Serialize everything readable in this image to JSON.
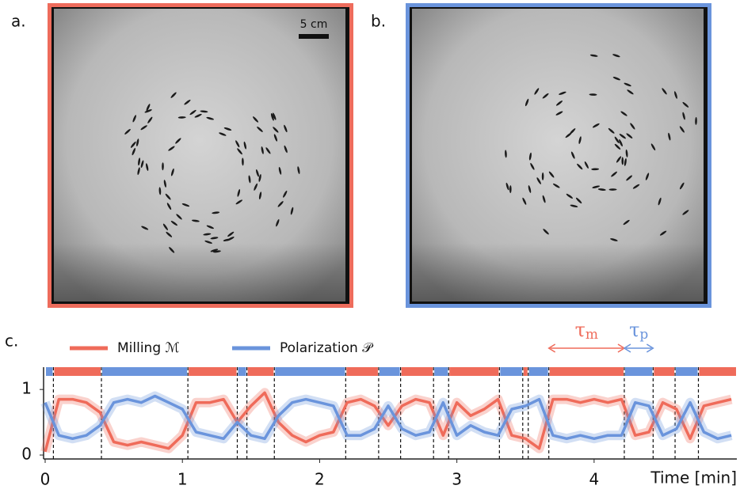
{
  "panel_labels": [
    "a.",
    "b.",
    "c."
  ],
  "scale_bar": "5 cm",
  "chart_data": {
    "type": "line",
    "xlabel": "Time [min]",
    "xlim": [
      0,
      5.04
    ],
    "xticks": [
      0,
      1,
      2,
      3,
      4
    ],
    "ylim": [
      -0.06,
      1.34
    ],
    "yticks": [
      0,
      1
    ],
    "x": [
      0,
      0.1,
      0.2,
      0.3,
      0.4,
      0.5,
      0.6,
      0.7,
      0.8,
      0.9,
      1.0,
      1.1,
      1.2,
      1.3,
      1.4,
      1.5,
      1.6,
      1.7,
      1.8,
      1.9,
      2.0,
      2.1,
      2.2,
      2.3,
      2.4,
      2.5,
      2.6,
      2.7,
      2.8,
      2.9,
      3.0,
      3.1,
      3.2,
      3.3,
      3.4,
      3.5,
      3.6,
      3.7,
      3.8,
      3.9,
      4.0,
      4.1,
      4.2,
      4.3,
      4.4,
      4.5,
      4.6,
      4.7,
      4.8,
      4.9,
      5.0
    ],
    "series": [
      {
        "name": "Milling ℳ",
        "color": "#ef6b5a",
        "values": [
          0.05,
          0.85,
          0.85,
          0.8,
          0.65,
          0.2,
          0.15,
          0.2,
          0.15,
          0.1,
          0.3,
          0.8,
          0.8,
          0.85,
          0.5,
          0.75,
          0.95,
          0.5,
          0.3,
          0.2,
          0.3,
          0.35,
          0.8,
          0.85,
          0.75,
          0.45,
          0.75,
          0.85,
          0.8,
          0.3,
          0.8,
          0.6,
          0.7,
          0.85,
          0.3,
          0.25,
          0.1,
          0.85,
          0.85,
          0.8,
          0.85,
          0.8,
          0.85,
          0.3,
          0.35,
          0.8,
          0.7,
          0.25,
          0.75,
          0.8,
          0.85
        ],
        "regimes": [
          [
            0.06,
            0.41
          ],
          [
            1.04,
            1.4
          ],
          [
            1.47,
            1.67
          ],
          [
            2.19,
            2.43
          ],
          [
            2.59,
            2.83
          ],
          [
            2.94,
            3.31
          ],
          [
            3.48,
            3.52
          ],
          [
            3.67,
            4.22
          ],
          [
            4.43,
            4.59
          ],
          [
            4.76,
            5.04
          ]
        ]
      },
      {
        "name": "Polarization 𝒫",
        "color": "#6a94dc",
        "values": [
          0.8,
          0.3,
          0.25,
          0.3,
          0.45,
          0.8,
          0.85,
          0.8,
          0.9,
          0.8,
          0.7,
          0.35,
          0.3,
          0.25,
          0.5,
          0.3,
          0.25,
          0.6,
          0.8,
          0.85,
          0.8,
          0.75,
          0.3,
          0.3,
          0.4,
          0.75,
          0.4,
          0.3,
          0.35,
          0.8,
          0.3,
          0.45,
          0.35,
          0.3,
          0.7,
          0.75,
          0.85,
          0.3,
          0.25,
          0.3,
          0.25,
          0.3,
          0.3,
          0.8,
          0.75,
          0.3,
          0.4,
          0.8,
          0.35,
          0.25,
          0.3
        ],
        "regimes": [
          [
            0,
            0.06
          ],
          [
            0.41,
            1.04
          ],
          [
            1.4,
            1.47
          ],
          [
            1.67,
            2.19
          ],
          [
            2.43,
            2.59
          ],
          [
            2.83,
            2.94
          ],
          [
            3.31,
            3.48
          ],
          [
            3.52,
            3.67
          ],
          [
            4.22,
            4.43
          ],
          [
            4.59,
            4.76
          ]
        ]
      }
    ],
    "annotations": [
      {
        "symbol": "τ",
        "subscript": "m",
        "color": "#ef6b5a",
        "xspan": [
          3.67,
          4.22
        ]
      },
      {
        "symbol": "τ",
        "subscript": "p",
        "color": "#6a94dc",
        "xspan": [
          4.22,
          4.43
        ]
      }
    ]
  }
}
